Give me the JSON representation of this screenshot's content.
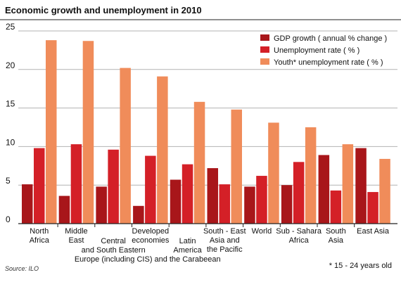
{
  "chart_data": {
    "type": "bar",
    "title": "Economic growth and unemployment in 2010",
    "categories": [
      [
        "North",
        "Africa"
      ],
      [
        "Middle",
        "East"
      ],
      [
        "Central",
        "and South Eastern",
        "Europe (including CIS)"
      ],
      [
        "Developed",
        "economies"
      ],
      [
        "Latin",
        "America",
        "and the Carabeean"
      ],
      [
        "South - East",
        "Asia and",
        "the Pacific"
      ],
      [
        "World"
      ],
      [
        "Sub - Sahara",
        "Africa"
      ],
      [
        "South",
        "Asia"
      ],
      [
        "East Asia"
      ]
    ],
    "series": [
      {
        "name": "GDP growth  ( annual % change )",
        "color": "#a8161a",
        "values": [
          5.1,
          3.6,
          4.8,
          2.3,
          5.7,
          7.2,
          4.8,
          5.0,
          8.9,
          9.8
        ]
      },
      {
        "name": "Unemployment rate  ( % )",
        "color": "#d42027",
        "values": [
          9.8,
          10.3,
          9.6,
          8.8,
          7.7,
          5.1,
          6.2,
          8.0,
          4.3,
          4.1
        ]
      },
      {
        "name": "Youth* unemployment rate  ( % )",
        "color": "#f08c5a",
        "values": [
          23.8,
          23.7,
          20.2,
          19.1,
          15.8,
          14.8,
          13.1,
          12.5,
          10.3,
          8.4
        ]
      }
    ],
    "yticks": [
      0,
      5,
      10,
      15,
      20,
      25
    ],
    "ylim": [
      0,
      25
    ],
    "grid": true,
    "legend_position": "top-right",
    "footnote": "* 15 - 24 years old",
    "source": "Source: ILO"
  }
}
